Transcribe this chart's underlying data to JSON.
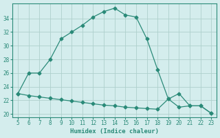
{
  "x": [
    5,
    6,
    7,
    8,
    9,
    10,
    11,
    12,
    13,
    14,
    15,
    16,
    17,
    18,
    19,
    20,
    21,
    22,
    23
  ],
  "y_curve": [
    23,
    26,
    26,
    28,
    31,
    32,
    33,
    34.2,
    35,
    35.5,
    34.5,
    34.2,
    31,
    26.5,
    22.2,
    23,
    21.2,
    21.2,
    20.1
  ],
  "y_line": [
    23,
    22.7,
    22.5,
    22.3,
    22.1,
    21.9,
    21.7,
    21.5,
    21.3,
    21.2,
    21.0,
    20.9,
    20.8,
    20.7,
    22.2,
    21.0,
    21.2,
    21.2,
    20.1
  ],
  "xlabel": "Humidex (Indice chaleur)",
  "xlim": [
    4.5,
    23.5
  ],
  "ylim": [
    19.5,
    36.2
  ],
  "yticks": [
    20,
    22,
    24,
    26,
    28,
    30,
    32,
    34
  ],
  "xticks": [
    5,
    6,
    7,
    8,
    9,
    10,
    11,
    12,
    13,
    14,
    15,
    16,
    17,
    18,
    19,
    20,
    21,
    22,
    23
  ],
  "line_color": "#2a8a78",
  "bg_color": "#d4eded",
  "grid_color": "#aed0cc",
  "marker": "D",
  "markersize": 2.5,
  "linewidth": 0.9
}
